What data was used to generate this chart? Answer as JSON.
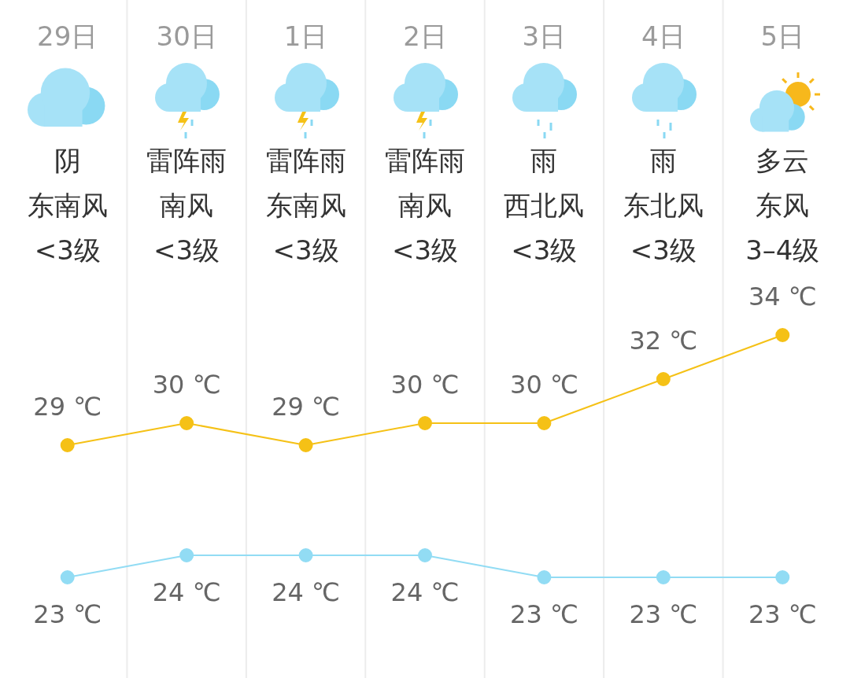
{
  "chart_data": {
    "type": "line",
    "categories": [
      "29日",
      "30日",
      "1日",
      "2日",
      "3日",
      "4日",
      "5日"
    ],
    "series": [
      {
        "color": "#f5c116",
        "values": [
          29,
          30,
          29,
          30,
          30,
          32,
          34
        ],
        "value_labels": [
          "29 ℃",
          "30 ℃",
          "29 ℃",
          "30 ℃",
          "30 ℃",
          "32 ℃",
          "34 ℃"
        ]
      },
      {
        "color": "#92dcf4",
        "values": [
          23,
          24,
          24,
          24,
          23,
          23,
          23
        ],
        "value_labels": [
          "23 ℃",
          "24 ℃",
          "24 ℃",
          "24 ℃",
          "23 ℃",
          "23 ℃",
          "23 ℃"
        ]
      }
    ],
    "annotations": [
      "阴",
      "东南风",
      "<3级",
      "雷阵雨",
      "南风",
      "<3级",
      "雷阵雨",
      "东南风",
      "<3级",
      "雷阵雨",
      "南风",
      "<3级",
      "雨",
      "西北风",
      "<3级",
      "雨",
      "东北风",
      "<3级",
      "多云",
      "东风",
      "3–4级"
    ],
    "grid": "x",
    "legend": false,
    "marker": "circle",
    "line_style": "solid"
  }
}
